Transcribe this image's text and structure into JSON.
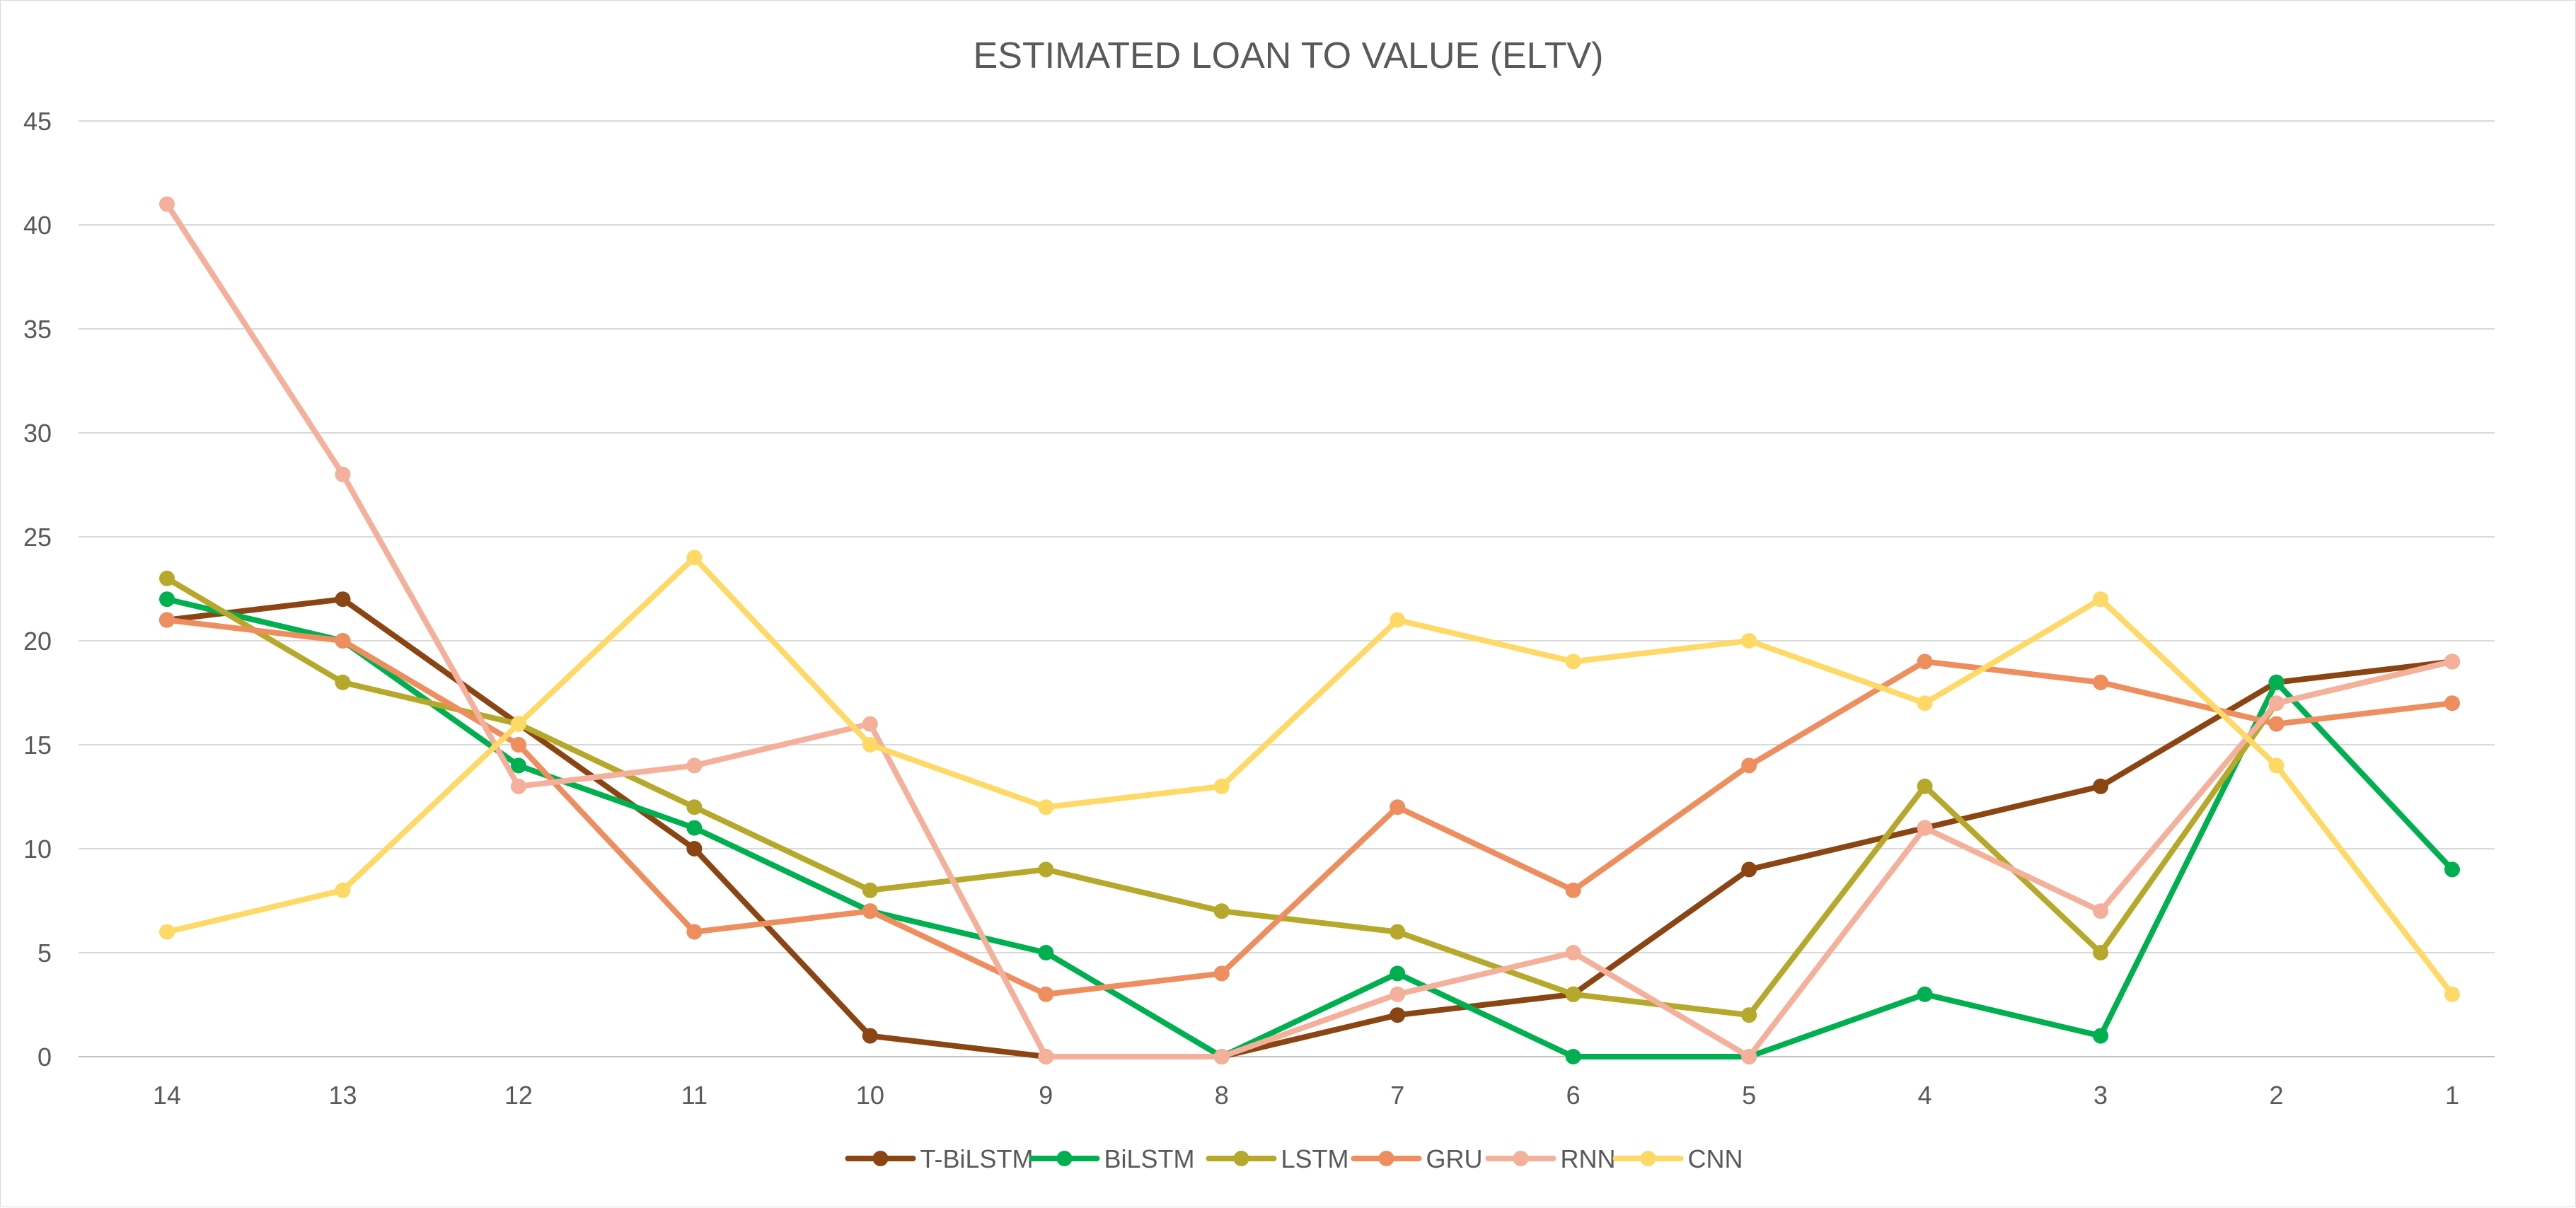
{
  "chart_data": {
    "type": "line",
    "title": "ESTIMATED LOAN TO VALUE (ELTV)",
    "xlabel": "",
    "ylabel": "",
    "categories": [
      "14",
      "13",
      "12",
      "11",
      "10",
      "9",
      "8",
      "7",
      "6",
      "5",
      "4",
      "3",
      "2",
      "1"
    ],
    "ylim": [
      0,
      45
    ],
    "yticks": [
      0,
      5,
      10,
      15,
      20,
      25,
      30,
      35,
      40,
      45
    ],
    "grid": true,
    "legend_position": "bottom",
    "series": [
      {
        "name": "T-BiLSTM",
        "color": "#8B4513",
        "values": [
          21,
          22,
          16,
          10,
          1,
          0,
          0,
          2,
          3,
          9,
          11,
          13,
          18,
          19
        ]
      },
      {
        "name": "BiLSTM",
        "color": "#00B050",
        "values": [
          22,
          20,
          14,
          11,
          7,
          5,
          0,
          4,
          0,
          0,
          3,
          1,
          18,
          9
        ]
      },
      {
        "name": "LSTM",
        "color": "#B5A82A",
        "values": [
          23,
          18,
          16,
          12,
          8,
          9,
          7,
          6,
          3,
          2,
          13,
          5,
          17,
          19
        ]
      },
      {
        "name": "GRU",
        "color": "#EE8E5F",
        "values": [
          21,
          20,
          15,
          6,
          7,
          3,
          4,
          12,
          8,
          14,
          19,
          18,
          16,
          17
        ]
      },
      {
        "name": "RNN",
        "color": "#F4B09A",
        "values": [
          41,
          28,
          13,
          14,
          16,
          0,
          0,
          3,
          5,
          0,
          11,
          7,
          17,
          19
        ]
      },
      {
        "name": "CNN",
        "color": "#FFD966",
        "values": [
          6,
          8,
          16,
          24,
          15,
          12,
          13,
          21,
          19,
          20,
          17,
          22,
          14,
          3
        ]
      }
    ]
  }
}
